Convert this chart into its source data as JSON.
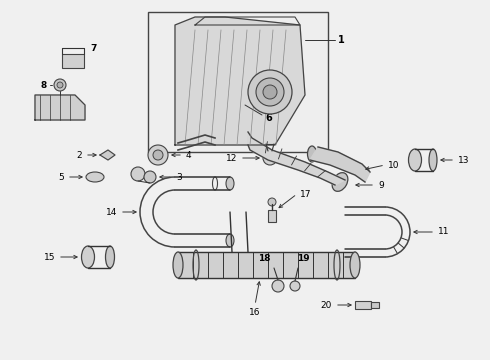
{
  "bg_color": "#f5f5f5",
  "line_color": "#333333",
  "text_color": "#000000",
  "fig_width": 4.9,
  "fig_height": 3.6,
  "dpi": 100
}
